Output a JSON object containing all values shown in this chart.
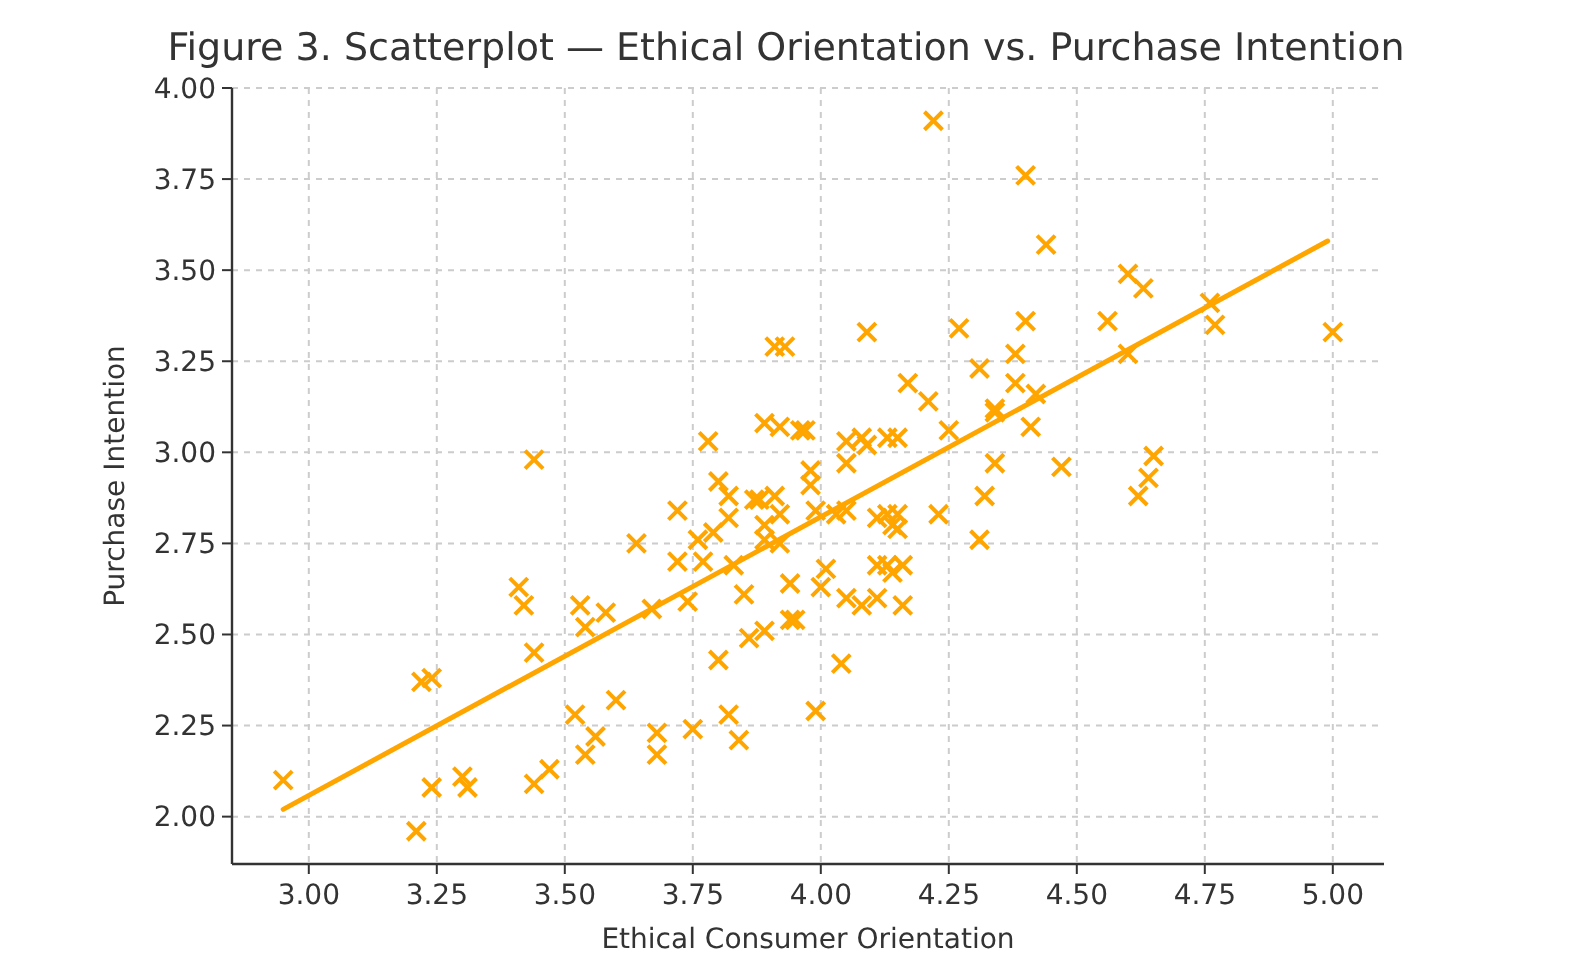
{
  "chart_data": {
    "type": "scatter",
    "title": "Figure 3. Scatterplot — Ethical Orientation vs. Purchase Intention",
    "xlabel": "Ethical Consumer Orientation",
    "ylabel": "Purchase Intention",
    "xlim": [
      2.85,
      5.1
    ],
    "ylim": [
      1.87,
      4.0
    ],
    "xticks": [
      {
        "value": 3,
        "label": "3.00"
      },
      {
        "value": 3.25,
        "label": "3.25"
      },
      {
        "value": 3.5,
        "label": "3.50"
      },
      {
        "value": 3.75,
        "label": "3.75"
      },
      {
        "value": 4,
        "label": "4.00"
      },
      {
        "value": 4.25,
        "label": "4.25"
      },
      {
        "value": 4.5,
        "label": "4.50"
      },
      {
        "value": 4.75,
        "label": "4.75"
      },
      {
        "value": 5,
        "label": "5.00"
      }
    ],
    "yticks": [
      {
        "value": 2,
        "label": "2.00"
      },
      {
        "value": 2.25,
        "label": "2.25"
      },
      {
        "value": 2.5,
        "label": "2.50"
      },
      {
        "value": 2.75,
        "label": "2.75"
      },
      {
        "value": 3,
        "label": "3.00"
      },
      {
        "value": 3.25,
        "label": "3.25"
      },
      {
        "value": 3.5,
        "label": "3.50"
      },
      {
        "value": 3.75,
        "label": "3.75"
      },
      {
        "value": 4,
        "label": "4.00"
      }
    ],
    "grid": true,
    "series": [
      {
        "color": "#ffa500",
        "marker": "cross",
        "x": [
          2.95,
          3.21,
          3.22,
          3.24,
          3.24,
          3.3,
          3.31,
          3.41,
          3.42,
          3.44,
          3.44,
          3.47,
          3.44,
          3.53,
          3.54,
          3.52,
          3.54,
          3.56,
          3.58,
          3.6,
          3.64,
          3.67,
          3.68,
          3.68,
          3.72,
          3.72,
          3.74,
          3.75,
          3.76,
          3.8,
          3.77,
          3.79,
          3.82,
          3.82,
          3.83,
          3.8,
          3.82,
          3.84,
          3.85,
          3.86,
          3.87,
          3.88,
          3.89,
          3.89,
          3.89,
          3.91,
          3.92,
          3.92,
          3.94,
          3.94,
          3.95,
          3.98,
          3.98,
          3.99,
          3.99,
          4.0,
          3.78,
          3.89,
          3.92,
          3.96,
          3.91,
          3.93,
          4.22,
          4.4,
          4.44,
          4.6,
          4.63,
          4.76,
          4.77,
          5.0,
          4.09,
          4.27,
          4.4,
          4.56,
          4.38,
          4.6,
          4.31,
          4.38,
          4.17,
          4.21,
          4.42,
          4.34,
          4.34,
          4.41,
          4.25,
          3.97,
          4.05,
          4.08,
          4.09,
          4.13,
          4.15,
          4.05,
          4.34,
          4.47,
          4.65,
          4.64,
          4.62,
          4.32,
          4.03,
          4.05,
          4.11,
          4.13,
          4.15,
          4.14,
          4.15,
          4.23,
          4.31,
          4.01,
          4.05,
          4.08,
          4.11,
          4.11,
          4.13,
          4.16,
          4.14,
          4.16,
          4.04
        ],
        "values": [
          2.1,
          1.96,
          2.37,
          2.38,
          2.08,
          2.11,
          2.08,
          2.63,
          2.58,
          2.45,
          2.09,
          2.13,
          2.98,
          2.58,
          2.52,
          2.28,
          2.17,
          2.22,
          2.56,
          2.32,
          2.75,
          2.57,
          2.23,
          2.17,
          2.84,
          2.7,
          2.59,
          2.24,
          2.76,
          2.92,
          2.7,
          2.78,
          2.88,
          2.82,
          2.69,
          2.43,
          2.28,
          2.21,
          2.61,
          2.49,
          2.87,
          2.87,
          2.8,
          2.76,
          2.51,
          2.88,
          2.83,
          2.75,
          2.64,
          2.54,
          2.54,
          2.95,
          2.91,
          2.84,
          2.29,
          2.63,
          3.03,
          3.08,
          3.07,
          3.06,
          3.29,
          3.29,
          3.91,
          3.76,
          3.57,
          3.49,
          3.45,
          3.41,
          3.35,
          3.33,
          3.33,
          3.34,
          3.36,
          3.36,
          3.27,
          3.27,
          3.23,
          3.19,
          3.19,
          3.14,
          3.16,
          3.12,
          3.11,
          3.07,
          3.06,
          3.06,
          3.03,
          3.04,
          3.02,
          3.04,
          3.04,
          2.97,
          2.97,
          2.96,
          2.99,
          2.93,
          2.88,
          2.88,
          2.83,
          2.84,
          2.82,
          2.83,
          2.83,
          2.8,
          2.79,
          2.83,
          2.76,
          2.68,
          2.6,
          2.58,
          2.6,
          2.69,
          2.69,
          2.69,
          2.67,
          2.58,
          2.42
        ]
      },
      {
        "type": "line",
        "color": "#ffa500",
        "marker": "none",
        "line_style": "solid",
        "x": [
          2.95,
          4.99
        ],
        "values": [
          2.02,
          3.58
        ]
      }
    ]
  }
}
